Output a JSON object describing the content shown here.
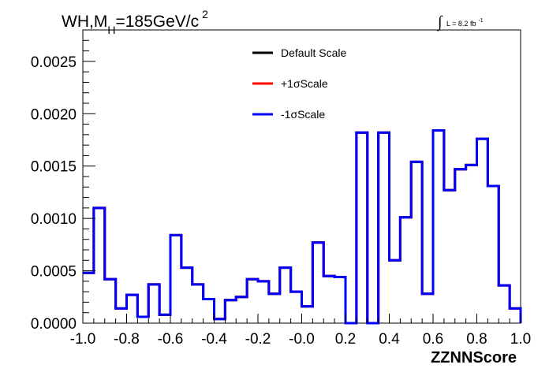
{
  "chart_data": {
    "type": "line",
    "step": true,
    "title": {
      "prefix": "WH,M",
      "subscript": "H",
      "value": "=185GeV/c",
      "superscript": "2"
    },
    "lumi": {
      "integral": "∫",
      "text": "L = 8.2 fb",
      "superscript": "-1"
    },
    "xlabel": "ZZNNScore",
    "ylabel": "",
    "xlim": [
      -1.0,
      1.0
    ],
    "ylim": [
      0.0,
      0.0028
    ],
    "xticks": [
      "-1.0",
      "-0.8",
      "-0.6",
      "-0.4",
      "-0.2",
      "-0.0",
      "0.2",
      "0.4",
      "0.6",
      "0.8",
      "1.0"
    ],
    "yticks": [
      "0.0000",
      "0.0005",
      "0.0010",
      "0.0015",
      "0.0020",
      "0.0025"
    ],
    "bin_edges": [
      -1.0,
      -0.95,
      -0.9,
      -0.85,
      -0.8,
      -0.75,
      -0.7,
      -0.65,
      -0.6,
      -0.55,
      -0.5,
      -0.45,
      -0.4,
      -0.35,
      -0.3,
      -0.25,
      -0.2,
      -0.15,
      -0.1,
      -0.05,
      0.0,
      0.05,
      0.1,
      0.15,
      0.2,
      0.25,
      0.3,
      0.35,
      0.4,
      0.45,
      0.5,
      0.55,
      0.6,
      0.65,
      0.7,
      0.75,
      0.8,
      0.85,
      0.9,
      0.95,
      1.0
    ],
    "series": [
      {
        "name": "Default Scale",
        "color": "#000000",
        "values": [
          0.00048,
          0.0011,
          0.00042,
          0.00014,
          0.00027,
          6e-05,
          0.00037,
          8e-05,
          0.00084,
          0.00053,
          0.00037,
          0.00023,
          4e-05,
          0.00022,
          0.00025,
          0.00042,
          0.0004,
          0.00028,
          0.00053,
          0.0003,
          0.00016,
          0.00077,
          0.00045,
          0.00044,
          0.0,
          0.00182,
          0.0,
          0.00182,
          0.0006,
          0.00101,
          0.00154,
          0.00028,
          0.00184,
          0.00127,
          0.00147,
          0.00151,
          0.00176,
          0.00131,
          0.00036,
          0.00014,
          0.0
        ]
      },
      {
        "name": "+1σScale",
        "color": "#ff0000",
        "values": [
          0.00048,
          0.0011,
          0.00042,
          0.00014,
          0.00027,
          6e-05,
          0.00037,
          8e-05,
          0.00084,
          0.00053,
          0.00037,
          0.00023,
          4e-05,
          0.00022,
          0.00025,
          0.00042,
          0.0004,
          0.00028,
          0.00053,
          0.0003,
          0.00016,
          0.00077,
          0.00045,
          0.00044,
          0.0,
          0.00182,
          0.0,
          0.00182,
          0.0006,
          0.00101,
          0.00154,
          0.00028,
          0.00184,
          0.00127,
          0.00147,
          0.00151,
          0.00176,
          0.00131,
          0.00036,
          0.00014,
          0.0
        ]
      },
      {
        "name": "-1σScale",
        "color": "#0000ff",
        "values": [
          0.00048,
          0.0011,
          0.00042,
          0.00014,
          0.00027,
          6e-05,
          0.00037,
          8e-05,
          0.00084,
          0.00053,
          0.00037,
          0.00023,
          4e-05,
          0.00022,
          0.00025,
          0.00042,
          0.0004,
          0.00028,
          0.00053,
          0.0003,
          0.00016,
          0.00077,
          0.00045,
          0.00044,
          0.0,
          0.00182,
          0.0,
          0.00182,
          0.0006,
          0.00101,
          0.00154,
          0.00028,
          0.00184,
          0.00127,
          0.00147,
          0.00151,
          0.00176,
          0.00131,
          0.00036,
          0.00014,
          0.0
        ]
      }
    ],
    "legend_position": "top-center",
    "grid": false
  }
}
